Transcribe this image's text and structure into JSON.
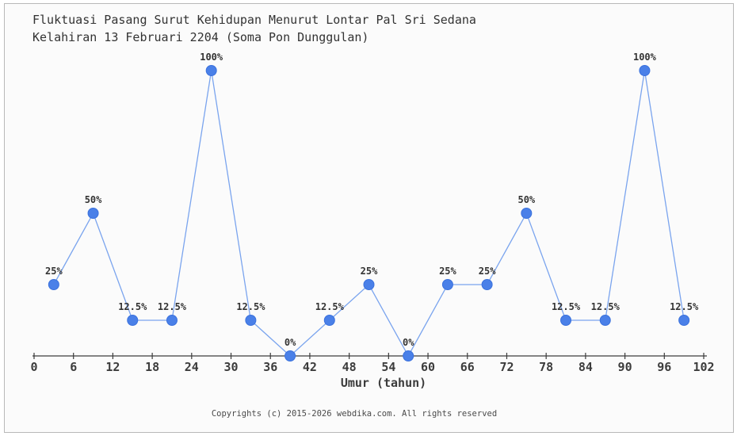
{
  "page": {
    "background": "#fbfbfb",
    "border_color": "#b9b9b9"
  },
  "footer": "Copyrights (c) 2015-2026 webdika.com. All rights reserved",
  "chart_data": {
    "type": "line",
    "title": "Fluktuasi Pasang Surut Kehidupan Menurut Lontar Pal Sri Sedana Kelahiran 13 Februari 2204 (Soma Pon Dunggulan)",
    "title_lines": [
      "Fluktuasi Pasang Surut Kehidupan Menurut Lontar Pal Sri Sedana",
      "Kelahiran 13 Februari 2204 (Soma Pon Dunggulan)"
    ],
    "xlabel": "Umur (tahun)",
    "ylabel": "",
    "x": [
      3,
      9,
      15,
      21,
      27,
      33,
      39,
      45,
      51,
      57,
      63,
      69,
      75,
      81,
      87,
      93,
      99
    ],
    "values": [
      25,
      50,
      12.5,
      12.5,
      100,
      12.5,
      0,
      12.5,
      25,
      0,
      25,
      25,
      50,
      12.5,
      12.5,
      100,
      12.5
    ],
    "point_labels": [
      "25%",
      "50%",
      "12.5%",
      "12.5%",
      "100%",
      "12.5%",
      "0%",
      "12.5%",
      "25%",
      "0%",
      "25%",
      "25%",
      "50%",
      "12.5%",
      "12.5%",
      "100%",
      "12.5%"
    ],
    "x_ticks": [
      0,
      6,
      12,
      18,
      24,
      30,
      36,
      42,
      48,
      54,
      60,
      66,
      72,
      78,
      84,
      90,
      96,
      102
    ],
    "xlim": [
      0,
      102
    ],
    "ylim": [
      0,
      100
    ],
    "grid": false,
    "legend": null,
    "line_color": "#7aa4ee",
    "marker_color": "#4a80e8",
    "marker_edge_color": "#3a71dd",
    "axis_color": "#3c3c3c",
    "label_color": "#333333"
  }
}
